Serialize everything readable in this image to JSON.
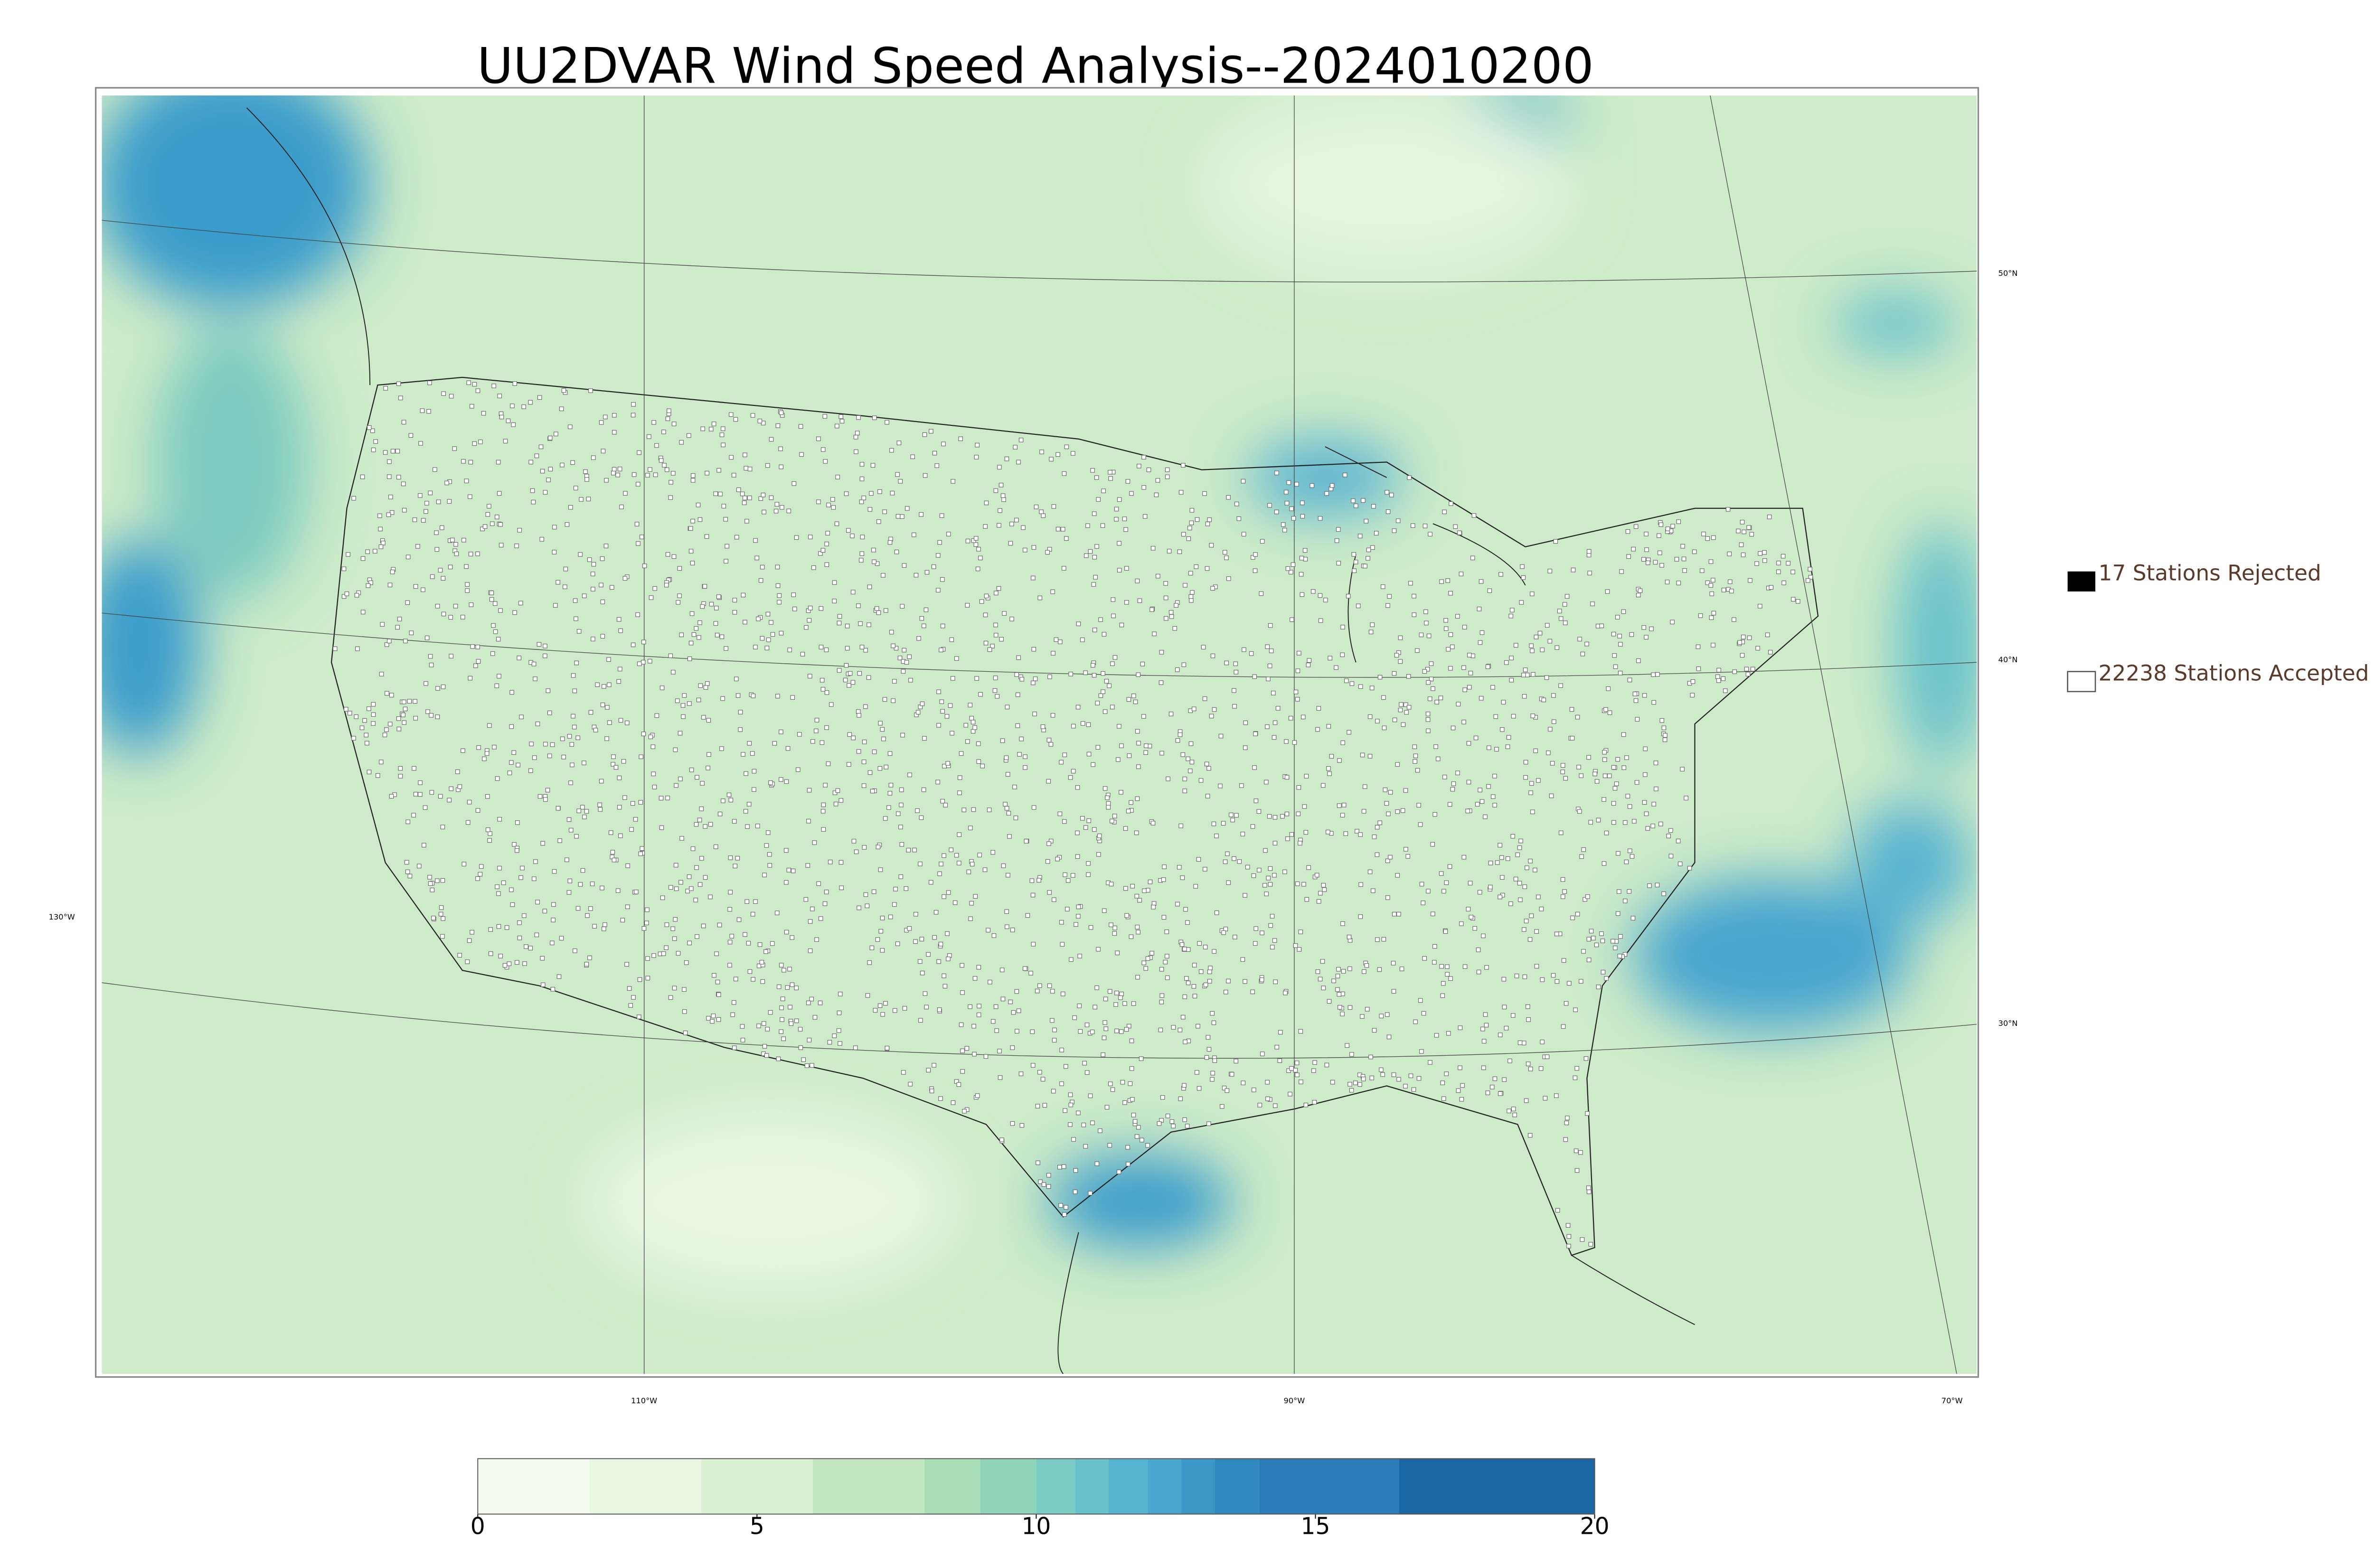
{
  "title": "UU2DVAR Wind Speed Analysis--2024010200",
  "legend": {
    "rejected": "17 Stations Rejected",
    "accepted": "22238 Stations Accepted"
  },
  "lat_labels": [
    "50°N",
    "40°N",
    "30°N"
  ],
  "lon_labels": [
    "130°W",
    "110°W",
    "90°W",
    "70°W"
  ],
  "colorbar": {
    "range": [
      0,
      20
    ],
    "ticks": [
      0,
      5,
      10,
      15,
      20
    ],
    "levels": [
      0,
      2,
      4,
      6,
      8,
      9,
      10,
      10.7,
      11.3,
      12,
      12.6,
      13.2,
      14,
      16.5,
      20
    ],
    "colors": [
      "#f5fbef",
      "#e8f6e2",
      "#d9f0d3",
      "#c2e7c0",
      "#a8ddb5",
      "#90d3bb",
      "#7bccc4",
      "#68c1cb",
      "#58b3d1",
      "#4aa6cf",
      "#3d97c6",
      "#3189c0",
      "#2b7bb9",
      "#1a67a3"
    ]
  }
}
